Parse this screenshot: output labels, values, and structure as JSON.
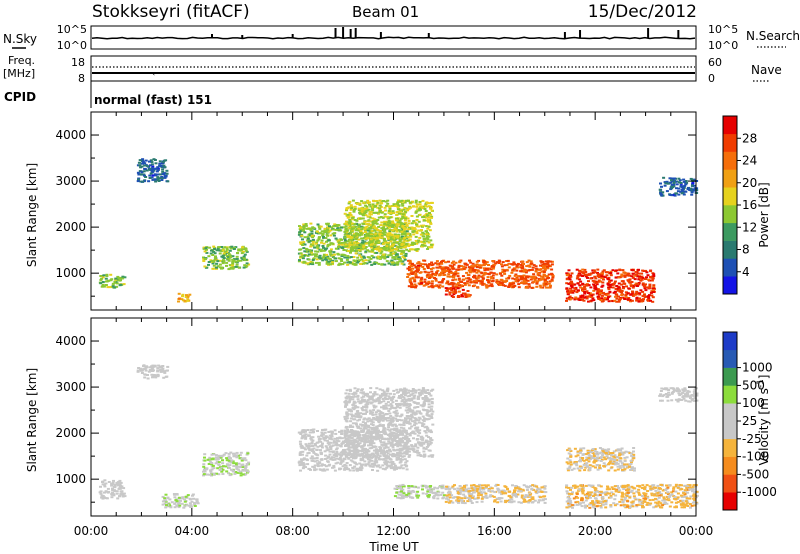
{
  "header": {
    "station": "Stokkseyri (fitACF)",
    "beam": "Beam 01",
    "date": "15/Dec/2012"
  },
  "strips": {
    "nsky_label": "N.Sky",
    "nsearch_label": "N.Search",
    "nsky_ticks": [
      "10^5",
      "10^0"
    ],
    "nsearch_ticks": [
      "10^5",
      "10^0"
    ],
    "freq_label_1": "Freq.",
    "freq_label_2": "[MHz]",
    "freq_ticks": [
      "18",
      "8"
    ],
    "nave_label": "Nave",
    "nave_ticks": [
      "60",
      "0"
    ],
    "cpid_label": "CPID",
    "cpid_value": "normal (fast) 151"
  },
  "colors": {
    "power": [
      "#1414e6",
      "#1e50b4",
      "#2a7a70",
      "#3c9a60",
      "#8cc832",
      "#e6d21e",
      "#f0a014",
      "#f56e0a",
      "#f03c00",
      "#e60000"
    ],
    "velocity": [
      "#e60000",
      "#f05014",
      "#f58c1e",
      "#f5b43c",
      "#c8c8c8",
      "#c8c8c8",
      "#8cdc3c",
      "#3c9a50",
      "#285ab4",
      "#1e3cc8"
    ],
    "gray": "#c8c8c8"
  },
  "chart_data": [
    {
      "type": "heatmap",
      "panel": "power",
      "ylabel": "Slant Range [km]",
      "xlabel": "",
      "yticks": [
        "1000",
        "2000",
        "3000",
        "4000"
      ],
      "ylim": [
        200,
        4500
      ],
      "xlim_hours": [
        0,
        24
      ],
      "colorbar_label": "Power [dB]",
      "colorbar_ticks": [
        "4",
        "8",
        "12",
        "16",
        "20",
        "24",
        "28"
      ],
      "colorbar_range": [
        0,
        32
      ],
      "regions": [
        {
          "t": [
            0.3,
            1.3
          ],
          "r": [
            700,
            1000
          ],
          "v": 14
        },
        {
          "t": [
            1.8,
            3.0
          ],
          "r": [
            3000,
            3500
          ],
          "v": 6
        },
        {
          "t": [
            3.4,
            3.9
          ],
          "r": [
            400,
            600
          ],
          "v": 20
        },
        {
          "t": [
            4.4,
            6.2
          ],
          "r": [
            1100,
            1600
          ],
          "v": 14
        },
        {
          "t": [
            8.2,
            12.5
          ],
          "r": [
            1200,
            2100
          ],
          "v": 14
        },
        {
          "t": [
            10.0,
            13.5
          ],
          "r": [
            1500,
            2600
          ],
          "v": 16
        },
        {
          "t": [
            12.5,
            18.3
          ],
          "r": [
            700,
            1300
          ],
          "v": 26
        },
        {
          "t": [
            14.0,
            15.0
          ],
          "r": [
            500,
            700
          ],
          "v": 28
        },
        {
          "t": [
            18.8,
            22.3
          ],
          "r": [
            400,
            1100
          ],
          "v": 28
        },
        {
          "t": [
            22.5,
            24.0
          ],
          "r": [
            2700,
            3100
          ],
          "v": 6
        }
      ]
    },
    {
      "type": "heatmap",
      "panel": "velocity",
      "ylabel": "Slant Range [km]",
      "xlabel": "Time UT",
      "yticks": [
        "1000",
        "2000",
        "3000",
        "4000"
      ],
      "ylim": [
        200,
        4500
      ],
      "xlim_hours": [
        0,
        24
      ],
      "xticks": [
        "00:00",
        "04:00",
        "08:00",
        "12:00",
        "16:00",
        "20:00",
        "00:00"
      ],
      "colorbar_label": "Velocity [m s^-1]",
      "colorbar_ticks": [
        "-1000",
        "-500",
        "-100",
        "-25",
        "25",
        "100",
        "500",
        "1000"
      ],
      "colorbar_range": [
        -1250,
        1250
      ],
      "regions": [
        {
          "t": [
            0.3,
            1.3
          ],
          "r": [
            600,
            1000
          ],
          "v": 0
        },
        {
          "t": [
            1.8,
            3.0
          ],
          "r": [
            3200,
            3500
          ],
          "v": 0
        },
        {
          "t": [
            2.8,
            4.2
          ],
          "r": [
            400,
            700
          ],
          "v": 150
        },
        {
          "t": [
            4.4,
            6.2
          ],
          "r": [
            1100,
            1600
          ],
          "v": 200
        },
        {
          "t": [
            8.2,
            12.5
          ],
          "r": [
            1200,
            2100
          ],
          "v": 0
        },
        {
          "t": [
            10.0,
            13.5
          ],
          "r": [
            1500,
            3000
          ],
          "v": 0
        },
        {
          "t": [
            12.0,
            14.0
          ],
          "r": [
            600,
            900
          ],
          "v": 150
        },
        {
          "t": [
            14.0,
            18.0
          ],
          "r": [
            500,
            900
          ],
          "v": -200
        },
        {
          "t": [
            18.8,
            21.5
          ],
          "r": [
            1200,
            1700
          ],
          "v": -250
        },
        {
          "t": [
            18.8,
            24.0
          ],
          "r": [
            400,
            900
          ],
          "v": -300
        },
        {
          "t": [
            22.5,
            24.0
          ],
          "r": [
            2700,
            3000
          ],
          "v": 0
        }
      ]
    }
  ]
}
